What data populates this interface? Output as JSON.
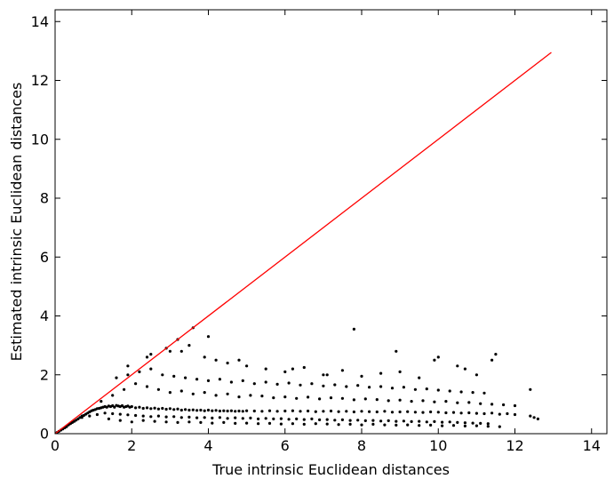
{
  "chart_data": {
    "type": "scatter",
    "title": "",
    "xlabel": "True intrinsic Euclidean distances",
    "ylabel": "Estimated intrinsic Euclidean distances",
    "xlim": [
      0,
      14.4
    ],
    "ylim": [
      0,
      14.4
    ],
    "xticks": [
      0,
      2,
      4,
      6,
      8,
      10,
      12,
      14
    ],
    "yticks": [
      0,
      2,
      4,
      6,
      8,
      10,
      12,
      14
    ],
    "grid": false,
    "legend": "none",
    "colors": {
      "points": "#000000",
      "reference_line": "#ff0000"
    },
    "reference_line": {
      "x": [
        0,
        12.95
      ],
      "y": [
        0,
        12.95
      ]
    },
    "series": [
      {
        "points_x": [
          0.05,
          0.1,
          0.15,
          0.2,
          0.25,
          0.3,
          0.35,
          0.4,
          0.45,
          0.5,
          0.55,
          0.6,
          0.65,
          0.7,
          0.75,
          0.8,
          0.85,
          0.9,
          0.95,
          1.0,
          1.05,
          1.1,
          1.15,
          1.2,
          1.25,
          1.3,
          1.35,
          1.4,
          1.45,
          1.5,
          1.55,
          1.6,
          1.65,
          1.7,
          1.75,
          1.8,
          1.85,
          1.9,
          1.95,
          2.0,
          2.1,
          2.2,
          2.3,
          2.4,
          2.5,
          2.6,
          2.7,
          2.8,
          2.9,
          3.0,
          3.1,
          3.2,
          3.3,
          3.4,
          3.5,
          3.6,
          3.7,
          3.8,
          3.9,
          4.0,
          4.1,
          4.2,
          4.3,
          4.4,
          4.5,
          4.6,
          4.7,
          4.8,
          4.9,
          5.0,
          5.2,
          5.4,
          5.6,
          5.8,
          6.0,
          6.2,
          6.4,
          6.6,
          6.8,
          7.0,
          7.2,
          7.4,
          7.6,
          7.8,
          8.0,
          8.2,
          8.4,
          8.6,
          8.8,
          9.0,
          9.2,
          9.4,
          9.6,
          9.8,
          10.0,
          10.2,
          10.4,
          10.6,
          10.8,
          11.0,
          11.2,
          11.4,
          11.6,
          11.8,
          12.0,
          12.4,
          12.5,
          12.6,
          1.2,
          1.5,
          1.8,
          2.1,
          2.4,
          2.7,
          3.0,
          3.3,
          3.6,
          3.9,
          4.2,
          4.5,
          4.8,
          5.1,
          5.4,
          5.7,
          6.0,
          6.3,
          6.6,
          6.9,
          7.2,
          7.5,
          7.8,
          8.1,
          8.4,
          8.7,
          9.0,
          9.3,
          9.6,
          9.9,
          10.2,
          10.5,
          10.8,
          11.1,
          11.4,
          11.7,
          12.0,
          1.4,
          1.7,
          2.0,
          2.3,
          2.6,
          2.9,
          3.2,
          3.5,
          3.8,
          4.1,
          4.4,
          4.7,
          5.0,
          5.3,
          5.6,
          5.9,
          6.2,
          6.5,
          6.8,
          7.1,
          7.4,
          7.7,
          8.0,
          8.3,
          8.6,
          8.9,
          9.2,
          9.5,
          9.8,
          10.1,
          10.4,
          10.7,
          11.0,
          11.3,
          11.6,
          1.6,
          1.9,
          2.2,
          2.5,
          2.8,
          3.1,
          3.4,
          3.7,
          4.0,
          4.3,
          4.6,
          4.9,
          5.2,
          5.5,
          5.8,
          6.1,
          6.4,
          6.7,
          7.0,
          7.3,
          7.6,
          7.9,
          8.2,
          8.5,
          8.8,
          9.1,
          9.4,
          9.7,
          10.0,
          10.3,
          10.6,
          10.9,
          11.2,
          2.5,
          3.0,
          3.2,
          3.5,
          3.9,
          4.2,
          4.5,
          5.0,
          5.5,
          6.0,
          6.5,
          7.0,
          7.5,
          7.8,
          8.0,
          8.5,
          9.0,
          9.5,
          10.0,
          10.5,
          11.0,
          11.4,
          11.5,
          12.4,
          2.9,
          3.6,
          4.0,
          1.9,
          2.4,
          3.3,
          4.8,
          6.2,
          7.1,
          8.9,
          9.9,
          10.7,
          0.7,
          0.9,
          1.1,
          1.3,
          1.5,
          1.7,
          1.9,
          2.1,
          2.3,
          2.5,
          2.7,
          2.9,
          3.1,
          3.3,
          3.5,
          3.7,
          3.9,
          4.1,
          4.3,
          4.5,
          4.7,
          4.9,
          5.1,
          5.3,
          5.5,
          5.7,
          5.9,
          6.1,
          6.3,
          6.5,
          6.7,
          6.9,
          7.1,
          7.3,
          7.5,
          7.7,
          7.9,
          8.1,
          8.3,
          8.5,
          8.7,
          8.9,
          9.1,
          9.3,
          9.5,
          9.7,
          9.9,
          10.1,
          10.3,
          10.5,
          10.7,
          10.9,
          11.1,
          11.3
        ],
        "points_y": [
          0.04,
          0.08,
          0.12,
          0.16,
          0.2,
          0.24,
          0.3,
          0.34,
          0.38,
          0.42,
          0.46,
          0.5,
          0.55,
          0.6,
          0.62,
          0.66,
          0.7,
          0.74,
          0.78,
          0.8,
          0.82,
          0.85,
          0.86,
          0.88,
          0.9,
          0.92,
          0.9,
          0.94,
          0.92,
          0.95,
          0.9,
          0.96,
          0.94,
          0.92,
          0.95,
          0.9,
          0.92,
          0.94,
          0.9,
          0.92,
          0.88,
          0.9,
          0.86,
          0.88,
          0.85,
          0.87,
          0.84,
          0.86,
          0.83,
          0.85,
          0.82,
          0.84,
          0.8,
          0.82,
          0.8,
          0.81,
          0.79,
          0.8,
          0.78,
          0.8,
          0.78,
          0.79,
          0.77,
          0.78,
          0.77,
          0.78,
          0.76,
          0.77,
          0.76,
          0.78,
          0.77,
          0.76,
          0.78,
          0.76,
          0.77,
          0.78,
          0.76,
          0.77,
          0.75,
          0.76,
          0.77,
          0.75,
          0.76,
          0.74,
          0.76,
          0.75,
          0.74,
          0.76,
          0.73,
          0.74,
          0.75,
          0.73,
          0.72,
          0.74,
          0.73,
          0.71,
          0.72,
          0.7,
          0.71,
          0.69,
          0.68,
          0.7,
          0.66,
          0.68,
          0.65,
          0.6,
          0.55,
          0.5,
          1.1,
          1.3,
          1.5,
          1.7,
          1.6,
          1.5,
          1.4,
          1.45,
          1.35,
          1.4,
          1.3,
          1.35,
          1.25,
          1.3,
          1.28,
          1.22,
          1.25,
          1.2,
          1.24,
          1.18,
          1.22,
          1.2,
          1.15,
          1.18,
          1.16,
          1.12,
          1.14,
          1.1,
          1.12,
          1.08,
          1.1,
          1.05,
          1.06,
          1.02,
          1.0,
          0.98,
          0.95,
          0.5,
          0.45,
          0.4,
          0.45,
          0.42,
          0.4,
          0.38,
          0.4,
          0.38,
          0.36,
          0.38,
          0.35,
          0.36,
          0.34,
          0.35,
          0.33,
          0.34,
          0.32,
          0.34,
          0.33,
          0.31,
          0.32,
          0.3,
          0.32,
          0.3,
          0.29,
          0.3,
          0.28,
          0.29,
          0.27,
          0.28,
          0.26,
          0.27,
          0.25,
          0.24,
          1.9,
          2.0,
          2.1,
          2.2,
          2.0,
          1.95,
          1.9,
          1.85,
          1.8,
          1.85,
          1.75,
          1.8,
          1.7,
          1.75,
          1.68,
          1.72,
          1.65,
          1.7,
          1.62,
          1.66,
          1.6,
          1.64,
          1.58,
          1.6,
          1.55,
          1.58,
          1.5,
          1.52,
          1.48,
          1.45,
          1.42,
          1.4,
          1.38,
          2.7,
          2.8,
          3.2,
          3.0,
          2.6,
          2.5,
          2.4,
          2.3,
          2.2,
          2.1,
          2.25,
          2.0,
          2.15,
          3.55,
          1.95,
          2.05,
          2.1,
          1.9,
          2.6,
          2.3,
          2.0,
          2.5,
          2.7,
          1.5,
          2.9,
          3.6,
          3.3,
          2.3,
          2.6,
          2.8,
          2.5,
          2.2,
          2.0,
          2.8,
          2.5,
          2.2,
          0.55,
          0.6,
          0.65,
          0.7,
          0.68,
          0.66,
          0.64,
          0.62,
          0.6,
          0.58,
          0.6,
          0.57,
          0.58,
          0.55,
          0.56,
          0.54,
          0.55,
          0.53,
          0.55,
          0.52,
          0.54,
          0.52,
          0.53,
          0.5,
          0.52,
          0.5,
          0.51,
          0.49,
          0.5,
          0.48,
          0.5,
          0.47,
          0.48,
          0.46,
          0.47,
          0.45,
          0.46,
          0.44,
          0.45,
          0.43,
          0.44,
          0.42,
          0.43,
          0.41,
          0.42,
          0.4,
          0.41,
          0.39,
          0.4,
          0.38,
          0.37,
          0.36,
          0.35,
          0.34
        ]
      }
    ]
  }
}
